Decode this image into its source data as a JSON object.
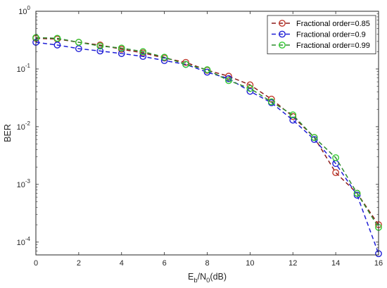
{
  "chart_data": {
    "type": "line",
    "xlabel_main": "E",
    "xlabel_sub_b": "b",
    "xlabel_mid": "/N",
    "xlabel_sub_0": "0",
    "xlabel_tail": "(dB)",
    "ylabel": "BER",
    "xlim": [
      0,
      16
    ],
    "ylim": [
      6e-05,
      1
    ],
    "y_scale": "log",
    "x_ticks": [
      0,
      2,
      4,
      6,
      8,
      10,
      12,
      14,
      16
    ],
    "y_ticks": [
      {
        "value": 0.0001,
        "base": "10",
        "exp": "-4"
      },
      {
        "value": 0.001,
        "base": "10",
        "exp": "-3"
      },
      {
        "value": 0.01,
        "base": "10",
        "exp": "-2"
      },
      {
        "value": 0.1,
        "base": "10",
        "exp": "-1"
      },
      {
        "value": 1,
        "base": "10",
        "exp": "0"
      }
    ],
    "grid": false,
    "legend_position": "top-right",
    "x": [
      0,
      1,
      2,
      3,
      4,
      5,
      6,
      7,
      8,
      9,
      10,
      11,
      12,
      13,
      14,
      15,
      16
    ],
    "series": [
      {
        "name": "Fractional order=0.85",
        "color": "#c0392b",
        "line_color": "#8b1a1a",
        "values": [
          0.34,
          0.33,
          0.29,
          0.26,
          0.22,
          0.19,
          0.155,
          0.13,
          0.095,
          0.075,
          0.053,
          0.03,
          0.015,
          0.0065,
          0.0016,
          0.0007,
          0.0002
        ]
      },
      {
        "name": "Fractional order=0.9",
        "color": "#1f1fd6",
        "line_color": "#1f1fd6",
        "values": [
          0.29,
          0.26,
          0.225,
          0.205,
          0.185,
          0.165,
          0.14,
          0.12,
          0.088,
          0.068,
          0.041,
          0.026,
          0.013,
          0.006,
          0.0023,
          0.00065,
          6.3e-05
        ]
      },
      {
        "name": "Fractional order=0.99",
        "color": "#33cc33",
        "line_color": "#2e8b2e",
        "values": [
          0.35,
          0.34,
          0.29,
          0.25,
          0.23,
          0.2,
          0.16,
          0.12,
          0.097,
          0.063,
          0.046,
          0.027,
          0.016,
          0.0065,
          0.0029,
          0.0007,
          0.00018
        ]
      }
    ]
  }
}
